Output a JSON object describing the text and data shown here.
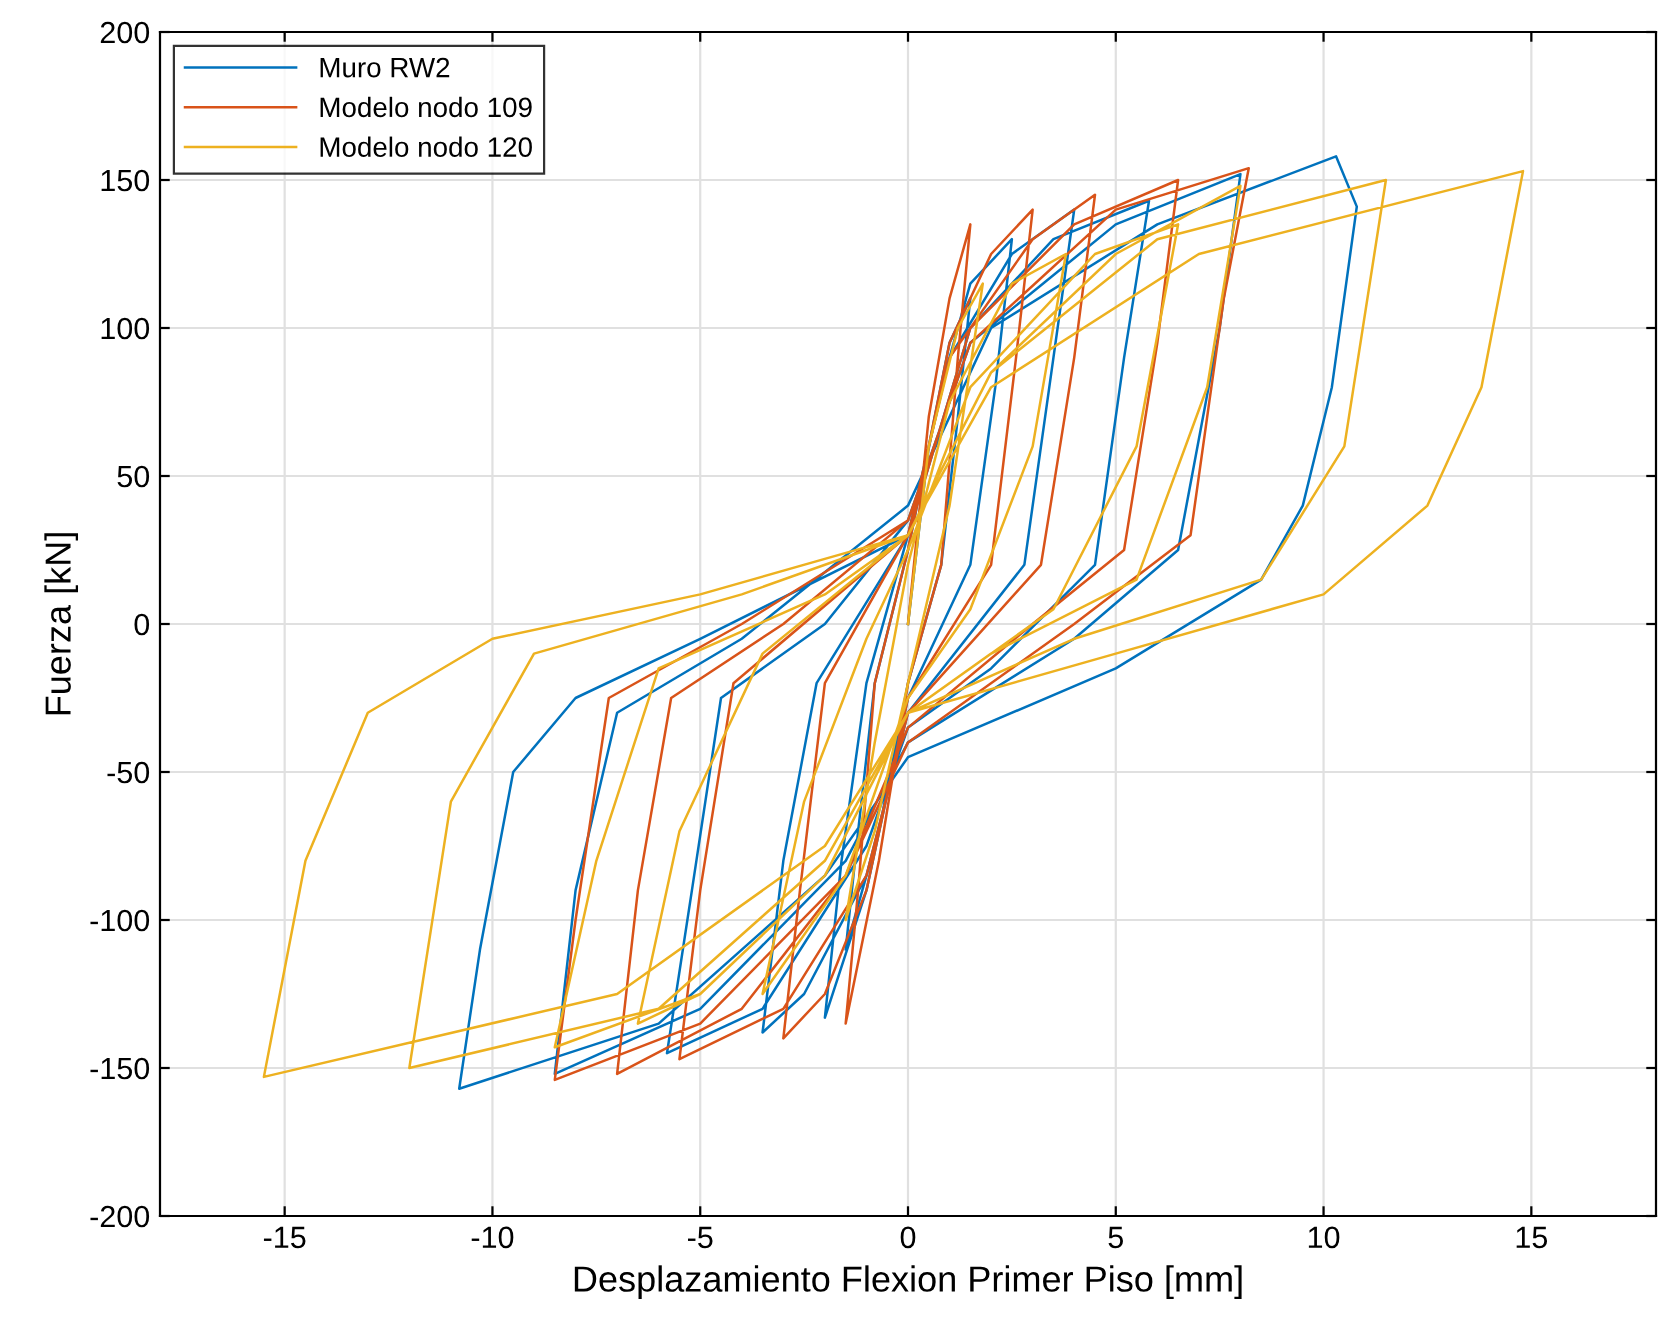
{
  "chart_data": {
    "type": "line",
    "xlabel": "Desplazamiento Flexion Primer Piso [mm]",
    "ylabel": "Fuerza [kN]",
    "xlim": [
      -18,
      18
    ],
    "ylim": [
      -200,
      200
    ],
    "xticks": [
      -15,
      -10,
      -5,
      0,
      5,
      10,
      15
    ],
    "yticks": [
      -200,
      -150,
      -100,
      -50,
      0,
      50,
      100,
      150,
      200
    ],
    "grid": true,
    "legend": "top left",
    "marker": "none",
    "line_style": "solid",
    "series": [
      {
        "name": "Muro RW2",
        "color": "#0072bd",
        "x": [
          0,
          0.5,
          1,
          1.5,
          1.2,
          0.8,
          0,
          -0.7,
          -1.5,
          -1.2,
          -0.8,
          0,
          0.8,
          1.5,
          2.5,
          2.1,
          1.5,
          0,
          -1,
          -2,
          -1.6,
          -1,
          0,
          1,
          2.5,
          4,
          3.5,
          2.8,
          0,
          -1,
          -2.5,
          -3.5,
          -3,
          -2.2,
          0,
          1.5,
          3.5,
          5.8,
          5.2,
          4.5,
          2,
          0,
          -1,
          -3.5,
          -5.8,
          -5.2,
          -4.5,
          -2,
          0,
          1.5,
          5,
          8,
          7.5,
          6.5,
          4,
          0,
          -1.5,
          -5,
          -8.5,
          -8,
          -7,
          -4,
          0,
          2,
          6,
          10.3,
          10.8,
          10.2,
          9.5,
          8.5,
          5,
          0,
          -2,
          -6,
          -10.8,
          -10.3,
          -9.5,
          -8,
          -5,
          0
        ],
        "values": [
          0,
          60,
          95,
          110,
          70,
          20,
          -20,
          -70,
          -110,
          -70,
          -20,
          25,
          80,
          115,
          130,
          80,
          20,
          -25,
          -90,
          -133,
          -80,
          -20,
          30,
          90,
          125,
          140,
          90,
          20,
          -30,
          -85,
          -125,
          -138,
          -80,
          -20,
          30,
          100,
          130,
          143,
          90,
          20,
          -15,
          -35,
          -75,
          -130,
          -145,
          -90,
          -25,
          0,
          35,
          95,
          135,
          152,
          100,
          25,
          -5,
          -40,
          -80,
          -130,
          -152,
          -90,
          -30,
          -5,
          40,
          100,
          135,
          158,
          141,
          80,
          40,
          15,
          -15,
          -45,
          -85,
          -135,
          -157,
          -110,
          -50,
          -25,
          -5,
          30
        ]
      },
      {
        "name": "Modelo nodo 109",
        "color": "#d95319",
        "x": [
          0,
          0.5,
          1,
          1.5,
          1.2,
          0.8,
          0,
          -0.7,
          -1.5,
          -1.2,
          -0.8,
          0,
          1,
          2,
          3,
          2.6,
          2,
          0,
          -1,
          -2,
          -3,
          -2.6,
          -2,
          0,
          1,
          3,
          4.5,
          4,
          3.2,
          0,
          -1,
          -3,
          -5.5,
          -5,
          -4.2,
          0,
          1.5,
          4,
          6.5,
          6,
          5.2,
          3,
          0,
          -1.5,
          -4,
          -7,
          -6.5,
          -5.7,
          -3,
          0,
          1.5,
          5,
          8.2,
          7.6,
          6.8,
          4,
          0,
          -1.5,
          -5,
          -8.5,
          -8,
          -7.2,
          -4,
          0
        ],
        "values": [
          0,
          70,
          110,
          135,
          90,
          20,
          -20,
          -80,
          -135,
          -90,
          -20,
          25,
          95,
          125,
          140,
          90,
          20,
          -25,
          -90,
          -125,
          -140,
          -90,
          -20,
          30,
          90,
          130,
          145,
          90,
          20,
          -30,
          -85,
          -130,
          -147,
          -90,
          -20,
          30,
          100,
          135,
          150,
          95,
          25,
          0,
          -35,
          -85,
          -130,
          -152,
          -90,
          -25,
          0,
          35,
          95,
          140,
          154,
          110,
          30,
          0,
          -40,
          -85,
          -135,
          -154,
          -100,
          -25,
          0,
          35
        ]
      },
      {
        "name": "Modelo nodo 120",
        "color": "#edb120",
        "x": [
          0,
          0.5,
          1.2,
          1.8,
          1,
          0,
          -0.8,
          -1.5,
          -0.8,
          0,
          1,
          2.5,
          3.8,
          3,
          1.5,
          0,
          -1.5,
          -3.5,
          -2.5,
          -1,
          0,
          1.5,
          4.5,
          6.5,
          5.5,
          3.5,
          0,
          -2,
          -5,
          -6.5,
          -5.5,
          -3.5,
          0,
          2,
          5,
          8,
          7.2,
          5.5,
          2,
          0,
          -2,
          -5,
          -8.5,
          -7.5,
          -6,
          -2,
          0,
          2,
          6,
          11.5,
          10.5,
          8.5,
          4,
          0,
          -2,
          -6,
          -12,
          -11,
          -9,
          -4,
          0,
          2,
          7,
          14.8,
          13.8,
          12.5,
          10,
          5,
          0,
          -2,
          -7,
          -15.5,
          -14.5,
          -13,
          -10,
          -5,
          0
        ],
        "values": [
          0,
          60,
          100,
          115,
          40,
          -20,
          -70,
          -100,
          -40,
          20,
          75,
          115,
          125,
          60,
          5,
          -25,
          -85,
          -125,
          -60,
          -5,
          25,
          80,
          125,
          135,
          60,
          5,
          -30,
          -85,
          -125,
          -135,
          -70,
          -10,
          30,
          85,
          125,
          148,
          80,
          15,
          -10,
          -30,
          -85,
          -125,
          -143,
          -80,
          -15,
          10,
          30,
          85,
          130,
          150,
          60,
          15,
          -5,
          -30,
          -80,
          -130,
          -150,
          -60,
          -10,
          10,
          30,
          80,
          125,
          153,
          80,
          40,
          10,
          -10,
          -30,
          -75,
          -125,
          -153,
          -80,
          -30,
          -5,
          10,
          30
        ]
      }
    ]
  }
}
